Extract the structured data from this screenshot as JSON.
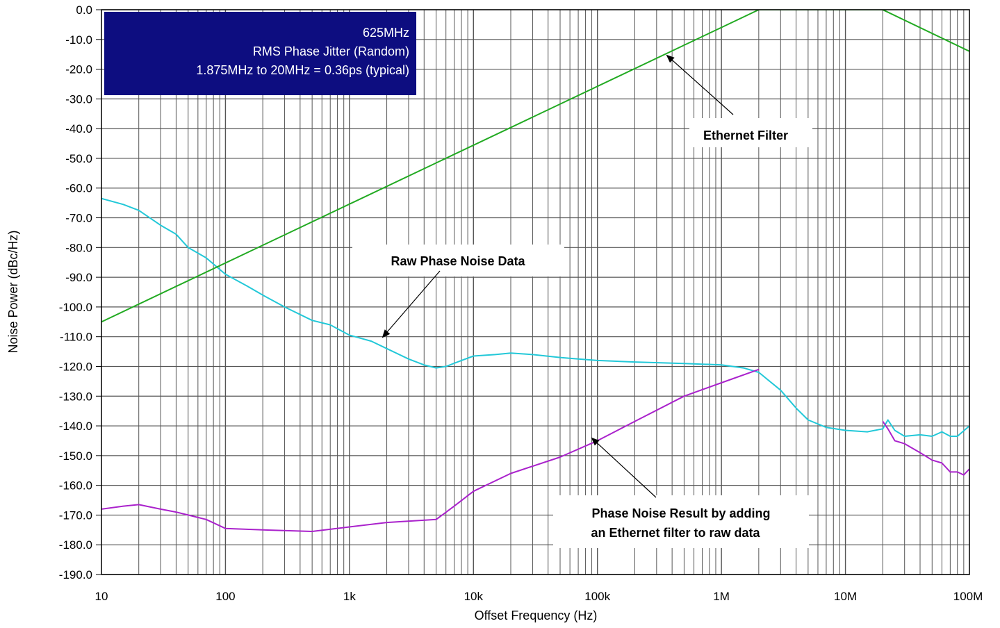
{
  "chart_data": {
    "type": "line",
    "title": "",
    "xlabel": "Offset Frequency (Hz)",
    "ylabel": "Noise Power (dBc/Hz)",
    "x_scale": "log",
    "xlim": [
      10,
      100000000
    ],
    "ylim": [
      -190,
      0
    ],
    "grid": true,
    "x_ticks": [
      10,
      100,
      1000,
      10000,
      100000,
      1000000,
      10000000,
      100000000
    ],
    "x_tick_labels": [
      "10",
      "100",
      "1k",
      "10k",
      "100k",
      "1M",
      "10M",
      "100M"
    ],
    "y_ticks": [
      0,
      -10,
      -20,
      -30,
      -40,
      -50,
      -60,
      -70,
      -80,
      -90,
      -100,
      -110,
      -120,
      -130,
      -140,
      -150,
      -160,
      -170,
      -180,
      -190
    ],
    "y_tick_labels": [
      "0.0",
      "-10.0",
      "-20.0",
      "-30.0",
      "-40.0",
      "-50.0",
      "-60.0",
      "-70.0",
      "-80.0",
      "-90.0",
      "-100.0",
      "-110.0",
      "-120.0",
      "-130.0",
      "-140.0",
      "-150.0",
      "-160.0",
      "-170.0",
      "-180.0",
      "-190.0"
    ],
    "series": [
      {
        "key": "raw",
        "color": "#22c8d8",
        "x": [
          10,
          15,
          20,
          30,
          40,
          50,
          70,
          100,
          150,
          200,
          300,
          500,
          700,
          1000,
          1500,
          2000,
          3000,
          4000,
          5000,
          6000,
          8000,
          10000,
          15000,
          20000,
          30000,
          50000,
          70000,
          100000,
          200000,
          500000,
          1000000,
          1500000,
          2000000,
          3000000,
          4000000,
          5000000,
          7000000,
          10000000,
          15000000,
          20000000,
          22000000,
          25000000,
          30000000,
          40000000,
          50000000,
          60000000,
          70000000,
          80000000,
          100000000
        ],
        "y": [
          -63.5,
          -65.5,
          -67.5,
          -72.5,
          -75.5,
          -80,
          -83.5,
          -89,
          -93,
          -96,
          -100,
          -104.5,
          -106,
          -109.5,
          -111.5,
          -114,
          -117.5,
          -119.5,
          -120.5,
          -120,
          -118,
          -116.5,
          -116,
          -115.5,
          -116,
          -117,
          -117.5,
          -118,
          -118.5,
          -119,
          -119.5,
          -120.5,
          -122,
          -128,
          -134,
          -138,
          -140.5,
          -141.5,
          -142,
          -141,
          -138,
          -141.5,
          -143.5,
          -143,
          -143.5,
          -142,
          -143.5,
          -143.5,
          -140
        ]
      },
      {
        "key": "filter",
        "color": "#22aa22",
        "x": [
          10,
          2000000,
          20000000,
          100000000
        ],
        "y": [
          -105,
          0,
          0,
          -14
        ]
      },
      {
        "key": "result",
        "color": "#aa22cc",
        "x": [
          10,
          15,
          20,
          30,
          40,
          50,
          70,
          100,
          200,
          500,
          1000,
          2000,
          5000,
          7000,
          10000,
          20000,
          50000,
          100000,
          200000,
          500000,
          1000000,
          2000000
        ],
        "y": [
          -168,
          -167,
          -166.5,
          -168,
          -169,
          -170,
          -171.5,
          -174.5,
          -175,
          -175.5,
          -174,
          -172.5,
          -171.5,
          -167,
          -162,
          -156,
          -150.5,
          -145,
          -138.5,
          -130,
          -125.5,
          -121
        ]
      },
      {
        "key": "result_tail",
        "color": "#aa22cc",
        "x": [
          20000000,
          22000000,
          25000000,
          30000000,
          40000000,
          50000000,
          60000000,
          70000000,
          80000000,
          90000000,
          100000000
        ],
        "y": [
          -138.5,
          -141,
          -145,
          -146,
          -149,
          -151.5,
          -152.5,
          -155.5,
          -155.5,
          -156.5,
          -154.5
        ]
      }
    ]
  },
  "infobox": {
    "line1": "625MHz",
    "line2": "RMS Phase Jitter (Random)",
    "line3": "1.875MHz to 20MHz = 0.36ps (typical)",
    "bg_color": "#0d0d80"
  },
  "callouts": {
    "ethernet_filter": "Ethernet Filter",
    "raw_phase_noise": "Raw Phase Noise Data",
    "result_line1": "Phase Noise Result by adding",
    "result_line2": "an Ethernet filter to raw data"
  }
}
